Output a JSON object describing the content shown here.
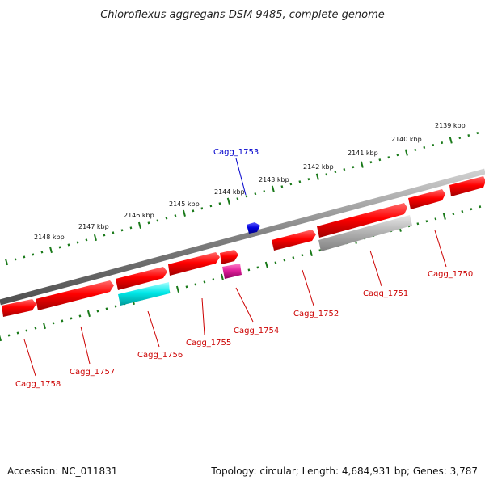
{
  "title": "Chloroflexus aggregans DSM 9485, complete genome",
  "footer": {
    "accession": "Accession: NC_011831",
    "summary": "Topology: circular; Length: 4,684,931 bp; Genes: 3,787"
  },
  "colors": {
    "backbone": "#808080",
    "forward_ticks": "#1a7a1a",
    "reverse_ticks": "#1a7a1a",
    "cds": "#ff0000",
    "label_red": "#cc0000",
    "label_blue": "#0000cc",
    "cyan": "#00e5e5",
    "magenta": "#e0209a",
    "gray": "#b4b4b4",
    "blue": "#0000dd"
  },
  "tick_labels": [
    {
      "text": "2139 kbp"
    },
    {
      "text": "2140 kbp"
    },
    {
      "text": "2141 kbp"
    },
    {
      "text": "2142 kbp"
    },
    {
      "text": "2143 kbp"
    },
    {
      "text": "2144 kbp"
    },
    {
      "text": "2145 kbp"
    },
    {
      "text": "2146 kbp"
    },
    {
      "text": "2147 kbp"
    },
    {
      "text": "2148 kbp"
    }
  ],
  "gene_labels": [
    {
      "text": "Cagg_1753",
      "color": "blue"
    },
    {
      "text": "Cagg_1750",
      "color": "red"
    },
    {
      "text": "Cagg_1751",
      "color": "red"
    },
    {
      "text": "Cagg_1752",
      "color": "red"
    },
    {
      "text": "Cagg_1754",
      "color": "red"
    },
    {
      "text": "Cagg_1755",
      "color": "red"
    },
    {
      "text": "Cagg_1756",
      "color": "red"
    },
    {
      "text": "Cagg_1757",
      "color": "red"
    },
    {
      "text": "Cagg_1758",
      "color": "red"
    }
  ]
}
